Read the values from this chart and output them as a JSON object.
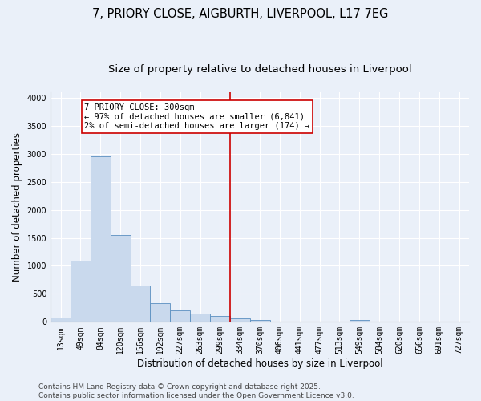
{
  "title_line1": "7, PRIORY CLOSE, AIGBURTH, LIVERPOOL, L17 7EG",
  "title_line2": "Size of property relative to detached houses in Liverpool",
  "xlabel": "Distribution of detached houses by size in Liverpool",
  "ylabel": "Number of detached properties",
  "bins": [
    "13sqm",
    "49sqm",
    "84sqm",
    "120sqm",
    "156sqm",
    "192sqm",
    "227sqm",
    "263sqm",
    "299sqm",
    "334sqm",
    "370sqm",
    "406sqm",
    "441sqm",
    "477sqm",
    "513sqm",
    "549sqm",
    "584sqm",
    "620sqm",
    "656sqm",
    "691sqm",
    "727sqm"
  ],
  "values": [
    75,
    1100,
    2950,
    1550,
    650,
    330,
    200,
    155,
    100,
    55,
    30,
    10,
    5,
    0,
    0,
    30,
    0,
    0,
    0,
    0,
    0
  ],
  "bar_color": "#c9d9ed",
  "bar_edge_color": "#5a8fc0",
  "bg_color": "#eaf0f9",
  "grid_color": "#ffffff",
  "vline_color": "#cc0000",
  "annotation_text": "7 PRIORY CLOSE: 300sqm\n← 97% of detached houses are smaller (6,841)\n2% of semi-detached houses are larger (174) →",
  "annotation_box_color": "#cc0000",
  "ylim": [
    0,
    4100
  ],
  "yticks": [
    0,
    500,
    1000,
    1500,
    2000,
    2500,
    3000,
    3500,
    4000
  ],
  "footer_line1": "Contains HM Land Registry data © Crown copyright and database right 2025.",
  "footer_line2": "Contains public sector information licensed under the Open Government Licence v3.0.",
  "title_fontsize": 10.5,
  "subtitle_fontsize": 9.5,
  "axis_label_fontsize": 8.5,
  "tick_fontsize": 7,
  "footer_fontsize": 6.5,
  "annotation_fontsize": 7.5
}
